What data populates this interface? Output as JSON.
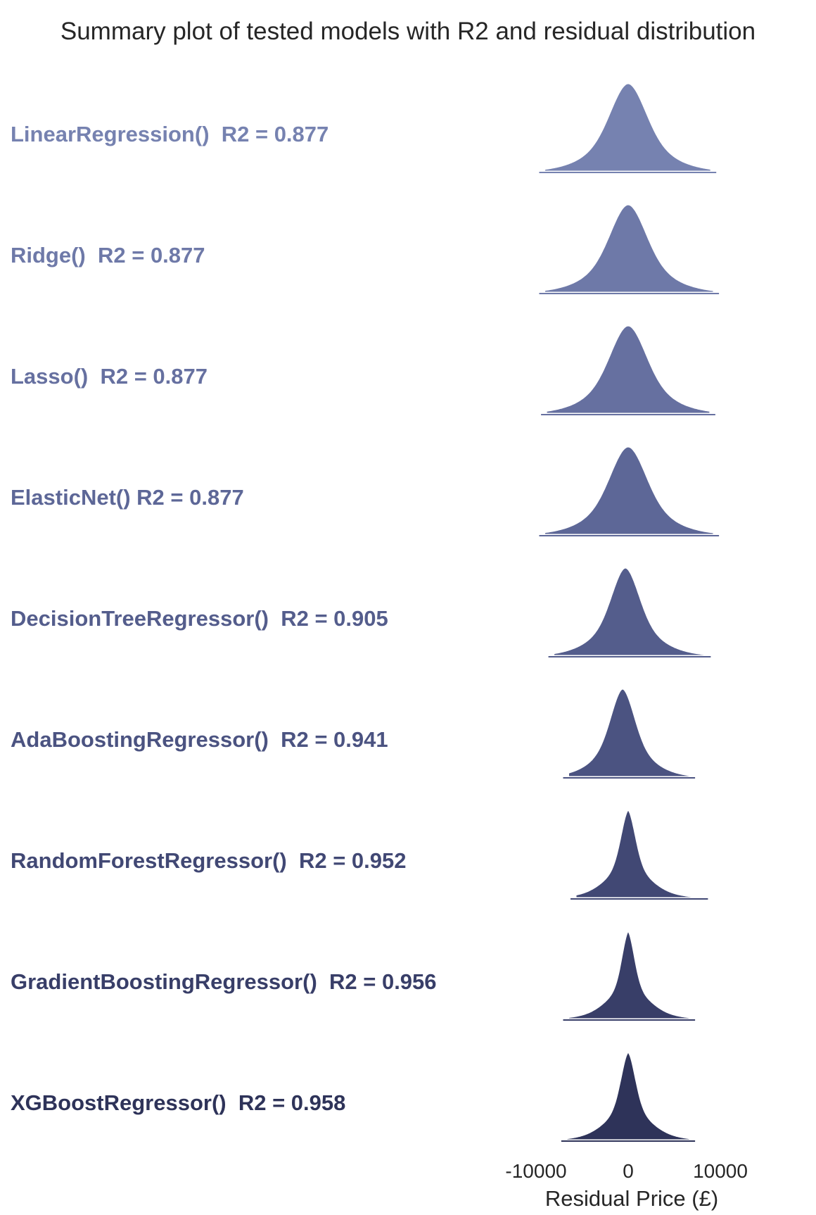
{
  "chart_data": {
    "type": "ridgeline",
    "title": "Summary plot of tested models with R2 and residual distribution",
    "xlabel": "Residual Price (£)",
    "x_ticks": [
      -10000,
      0,
      10000
    ],
    "x_tick_labels": [
      "-10000",
      "0",
      "10000"
    ],
    "xlim": [
      -15000,
      13000
    ],
    "grid": false,
    "legend": "none",
    "series": [
      {
        "label": "LinearRegression()  R2 = 0.877",
        "r2": 0.877,
        "color": "#7682b0",
        "x_min": -9200,
        "x_max": 9100,
        "center": 0,
        "peak_width": 1900,
        "mid_width": 3500,
        "tail_width": 7500
      },
      {
        "label": "Ridge()  R2 = 0.877",
        "r2": 0.877,
        "color": "#6e79a8",
        "x_min": -9200,
        "x_max": 9400,
        "center": 0,
        "peak_width": 1900,
        "mid_width": 3500,
        "tail_width": 7500
      },
      {
        "label": "Lasso()  R2 = 0.877",
        "r2": 0.877,
        "color": "#6670a0",
        "x_min": -9000,
        "x_max": 9000,
        "center": 0,
        "peak_width": 1900,
        "mid_width": 3500,
        "tail_width": 7500
      },
      {
        "label": "ElasticNet() R2 = 0.877",
        "r2": 0.877,
        "color": "#5d6797",
        "x_min": -9200,
        "x_max": 9400,
        "center": 0,
        "peak_width": 1900,
        "mid_width": 3500,
        "tail_width": 7500
      },
      {
        "label": "DecisionTreeRegressor()  R2 = 0.905",
        "r2": 0.905,
        "color": "#545d8c",
        "x_min": -8200,
        "x_max": 8500,
        "center": -300,
        "peak_width": 1500,
        "mid_width": 3000,
        "tail_width": 6500
      },
      {
        "label": "AdaBoostingRegressor()  R2 = 0.941",
        "r2": 0.941,
        "color": "#4b5381",
        "x_min": -6600,
        "x_max": 6800,
        "center": -600,
        "peak_width": 1300,
        "mid_width": 2600,
        "tail_width": 5500
      },
      {
        "label": "RandomForestRegressor()  R2 = 0.952",
        "r2": 0.952,
        "color": "#414874",
        "x_min": -5800,
        "x_max": 8200,
        "center": 0,
        "peak_width": 850,
        "mid_width": 2200,
        "tail_width": 5500
      },
      {
        "label": "GradientBoostingRegressor()  R2 = 0.956",
        "r2": 0.956,
        "color": "#383e68",
        "x_min": -6600,
        "x_max": 6800,
        "center": 0,
        "peak_width": 750,
        "mid_width": 2100,
        "tail_width": 5500
      },
      {
        "label": "XGBoostRegressor()  R2 = 0.958",
        "r2": 0.958,
        "color": "#2e3359",
        "x_min": -6800,
        "x_max": 6800,
        "center": 0,
        "peak_width": 850,
        "mid_width": 2200,
        "tail_width": 5500
      }
    ]
  }
}
